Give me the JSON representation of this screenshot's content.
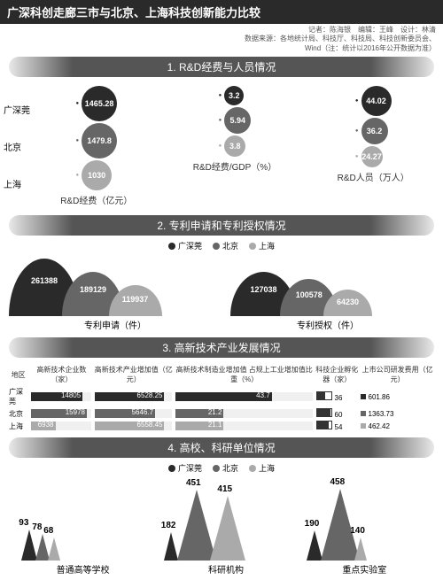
{
  "title": "广深科创走廊三市与北京、上海科技创新能力比较",
  "credits_line1": "记者：陈海银　编辑：王峰　设计：林清",
  "credits_line2": "数据来源：各地统计局、科技厅、科技局、科技创新委员会、",
  "credits_line3": "Wind（注：统计以2016年公开数据为准）",
  "cities": {
    "gsz": "广深莞",
    "bj": "北京",
    "sh": "上海"
  },
  "colors": {
    "dark": "#2a2a2a",
    "mid": "#666666",
    "light": "#aaaaaa",
    "bg": "#ffffff"
  },
  "section1": {
    "header": "1. R&D经费与人员情况",
    "cols": [
      {
        "label": "R&D经费（亿元）",
        "vals": [
          "1465.28",
          "1479.8",
          "1030"
        ],
        "sizes": [
          40,
          40,
          34
        ]
      },
      {
        "label": "R&D经费/GDP（%）",
        "vals": [
          "3.2",
          "5.94",
          "3.8"
        ],
        "sizes": [
          22,
          30,
          24
        ]
      },
      {
        "label": "R&D人员（万人）",
        "vals": [
          "44.02",
          "36.2",
          "24.27"
        ],
        "sizes": [
          34,
          30,
          24
        ]
      }
    ]
  },
  "section2": {
    "header": "2. 专利申请和专利授权情况",
    "groups": [
      {
        "label": "专利申请（件）",
        "vals": [
          "261388",
          "189129",
          "119937"
        ],
        "heights": [
          65,
          50,
          35
        ],
        "widths": [
          80,
          70,
          60
        ]
      },
      {
        "label": "专利授权（件）",
        "vals": [
          "127038",
          "100578",
          "64230"
        ],
        "heights": [
          50,
          42,
          30
        ],
        "widths": [
          75,
          65,
          55
        ]
      }
    ]
  },
  "section3": {
    "header": "3. 高新技术产业发展情况",
    "headers": [
      "地区",
      "高新技术企业数（家）",
      "高新技术产业增加值（亿元）",
      "高新技术制造业增加值\n占规上工业增加值比重（%）",
      "科技企业孵化器（家）",
      "上市公司研发费用（亿元）"
    ],
    "rows": [
      {
        "city": "广深莞",
        "v1": "14805",
        "w1": 85,
        "v2": "6528.25",
        "w2": 90,
        "v3": "43.7",
        "w3": 70,
        "v4": "36",
        "v5": "601.86"
      },
      {
        "city": "北京",
        "v1": "15978",
        "w1": 92,
        "v2": "5646.7",
        "w2": 78,
        "v3": "21.2",
        "w3": 35,
        "v4": "60",
        "v5": "1363.73"
      },
      {
        "city": "上海",
        "v1": "6938",
        "w1": 40,
        "v2": "6558.45",
        "w2": 90,
        "v3": "21.1",
        "w3": 35,
        "v4": "54",
        "v5": "462.42"
      }
    ]
  },
  "section4": {
    "header": "4. 高校、科研单位情况",
    "groups": [
      {
        "label": "普通高等学校",
        "vals": [
          "93",
          "78",
          "68"
        ],
        "heights": [
          35,
          30,
          26
        ]
      },
      {
        "label": "科研机构",
        "vals": [
          "182",
          "451",
          "415"
        ],
        "heights": [
          32,
          80,
          73
        ]
      },
      {
        "label": "重点实验室",
        "vals": [
          "190",
          "458",
          "140"
        ],
        "heights": [
          34,
          81,
          26
        ]
      }
    ]
  }
}
